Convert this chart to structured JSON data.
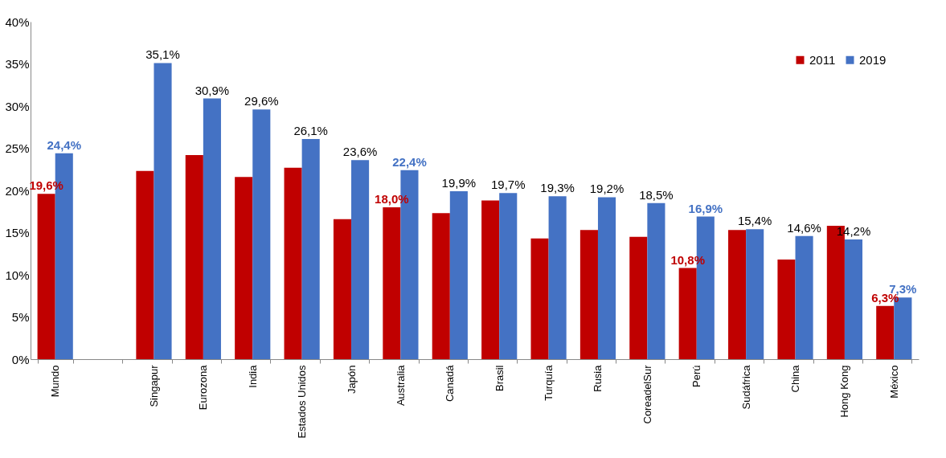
{
  "chart_data": {
    "type": "bar",
    "categories": [
      "Mundo",
      null,
      "Singapur",
      "Eurozona",
      "India",
      "Estados Unidos",
      "Japón",
      "Australia",
      "Canadá",
      "Brasil",
      "Turquía",
      "Rusia",
      "CoreadelSur",
      "Perú",
      "Sudáfrica",
      "China",
      "Hong Kong",
      "México"
    ],
    "series": [
      {
        "name": "2011",
        "color": "#c00000",
        "values": [
          19.6,
          null,
          22.3,
          24.2,
          21.6,
          22.7,
          16.6,
          18.0,
          17.3,
          18.8,
          14.3,
          15.3,
          14.5,
          10.8,
          15.3,
          11.8,
          15.8,
          6.3
        ],
        "value_labels": [
          "19,6%",
          null,
          null,
          null,
          null,
          null,
          null,
          "18,0%",
          null,
          null,
          null,
          null,
          null,
          "10,8%",
          null,
          null,
          null,
          "6,3%"
        ]
      },
      {
        "name": "2019",
        "color": "#4472c4",
        "values": [
          24.4,
          null,
          35.1,
          30.9,
          29.6,
          26.1,
          23.6,
          22.4,
          19.9,
          19.7,
          19.3,
          19.2,
          18.5,
          16.9,
          15.4,
          14.6,
          14.2,
          7.3
        ],
        "value_labels": [
          "24,4%",
          null,
          "35,1%",
          "30,9%",
          "29,6%",
          "26,1%",
          "23,6%",
          "22,4%",
          "19,9%",
          "19,7%",
          "19,3%",
          "19,2%",
          "18,5%",
          "16,9%",
          "15,4%",
          "14,6%",
          "14,2%",
          "7,3%"
        ]
      }
    ],
    "ylim": [
      0,
      40
    ],
    "yticks": [
      {
        "value": 0,
        "label": "0%"
      },
      {
        "value": 5,
        "label": "5%"
      },
      {
        "value": 10,
        "label": "10%"
      },
      {
        "value": 15,
        "label": "15%"
      },
      {
        "value": 20,
        "label": "20%"
      },
      {
        "value": 25,
        "label": "25%"
      },
      {
        "value": 30,
        "label": "30%"
      },
      {
        "value": 35,
        "label": "35%"
      },
      {
        "value": 40,
        "label": "40%"
      }
    ],
    "legend": "top right",
    "grid": false
  }
}
